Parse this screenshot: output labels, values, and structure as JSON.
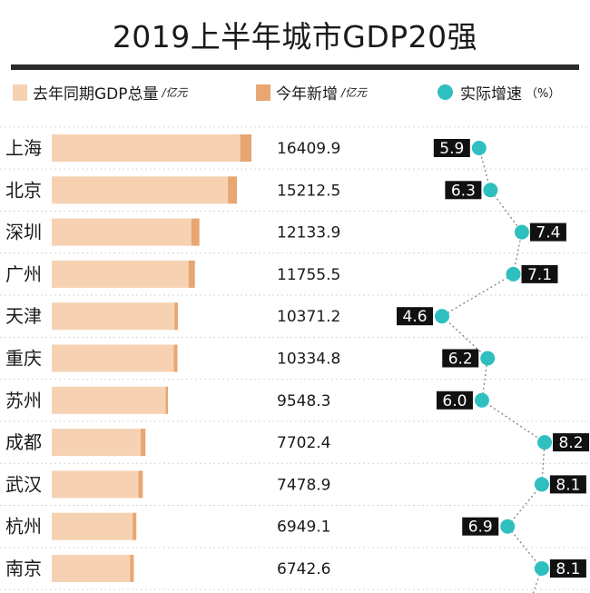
{
  "title": "2019上半年城市GDP20强",
  "legend": {
    "prev_label": "去年同期GDP总量",
    "prev_unit": "/亿元",
    "new_label": "今年新增",
    "new_unit": "/亿元",
    "rate_label": "实际增速",
    "rate_unit": "（%）"
  },
  "colors": {
    "prev": "#f6d2b3",
    "new": "#e8a672",
    "rate": "#2fbfbf",
    "label_bg": "#111111",
    "rule": "#2a2a2a"
  },
  "chart_data": {
    "type": "bar",
    "categories": [
      "上海",
      "北京",
      "深圳",
      "广州",
      "天津",
      "重庆",
      "苏州",
      "成都",
      "武汉",
      "杭州",
      "南京"
    ],
    "totals": [
      "16409.9",
      "15212.5",
      "12133.9",
      "11755.5",
      "10371.2",
      "10334.8",
      "9548.3",
      "7702.4",
      "7478.9",
      "6949.1",
      "6742.6"
    ],
    "series": [
      {
        "name": "去年同期GDP总量",
        "unit": "亿元",
        "values": [
          15480,
          14470,
          11470,
          11240,
          10080,
          10020,
          9360,
          7310,
          7120,
          6640,
          6430
        ]
      },
      {
        "name": "今年新增",
        "unit": "亿元",
        "values": [
          930,
          740,
          660,
          520,
          290,
          310,
          190,
          390,
          360,
          310,
          310
        ]
      },
      {
        "name": "实际增速",
        "unit": "%",
        "values": [
          5.9,
          6.3,
          7.4,
          7.1,
          4.6,
          6.2,
          6.0,
          8.2,
          8.1,
          6.9,
          8.1
        ],
        "labels": [
          "5.9",
          "6.3",
          "7.4",
          "7.1",
          "4.6",
          "6.2",
          "6.0",
          "8.2",
          "8.1",
          "6.9",
          "8.1"
        ]
      }
    ],
    "rate_label_side": [
      "left",
      "left",
      "right",
      "right",
      "left",
      "left",
      "left",
      "right",
      "right",
      "left",
      "right"
    ]
  }
}
